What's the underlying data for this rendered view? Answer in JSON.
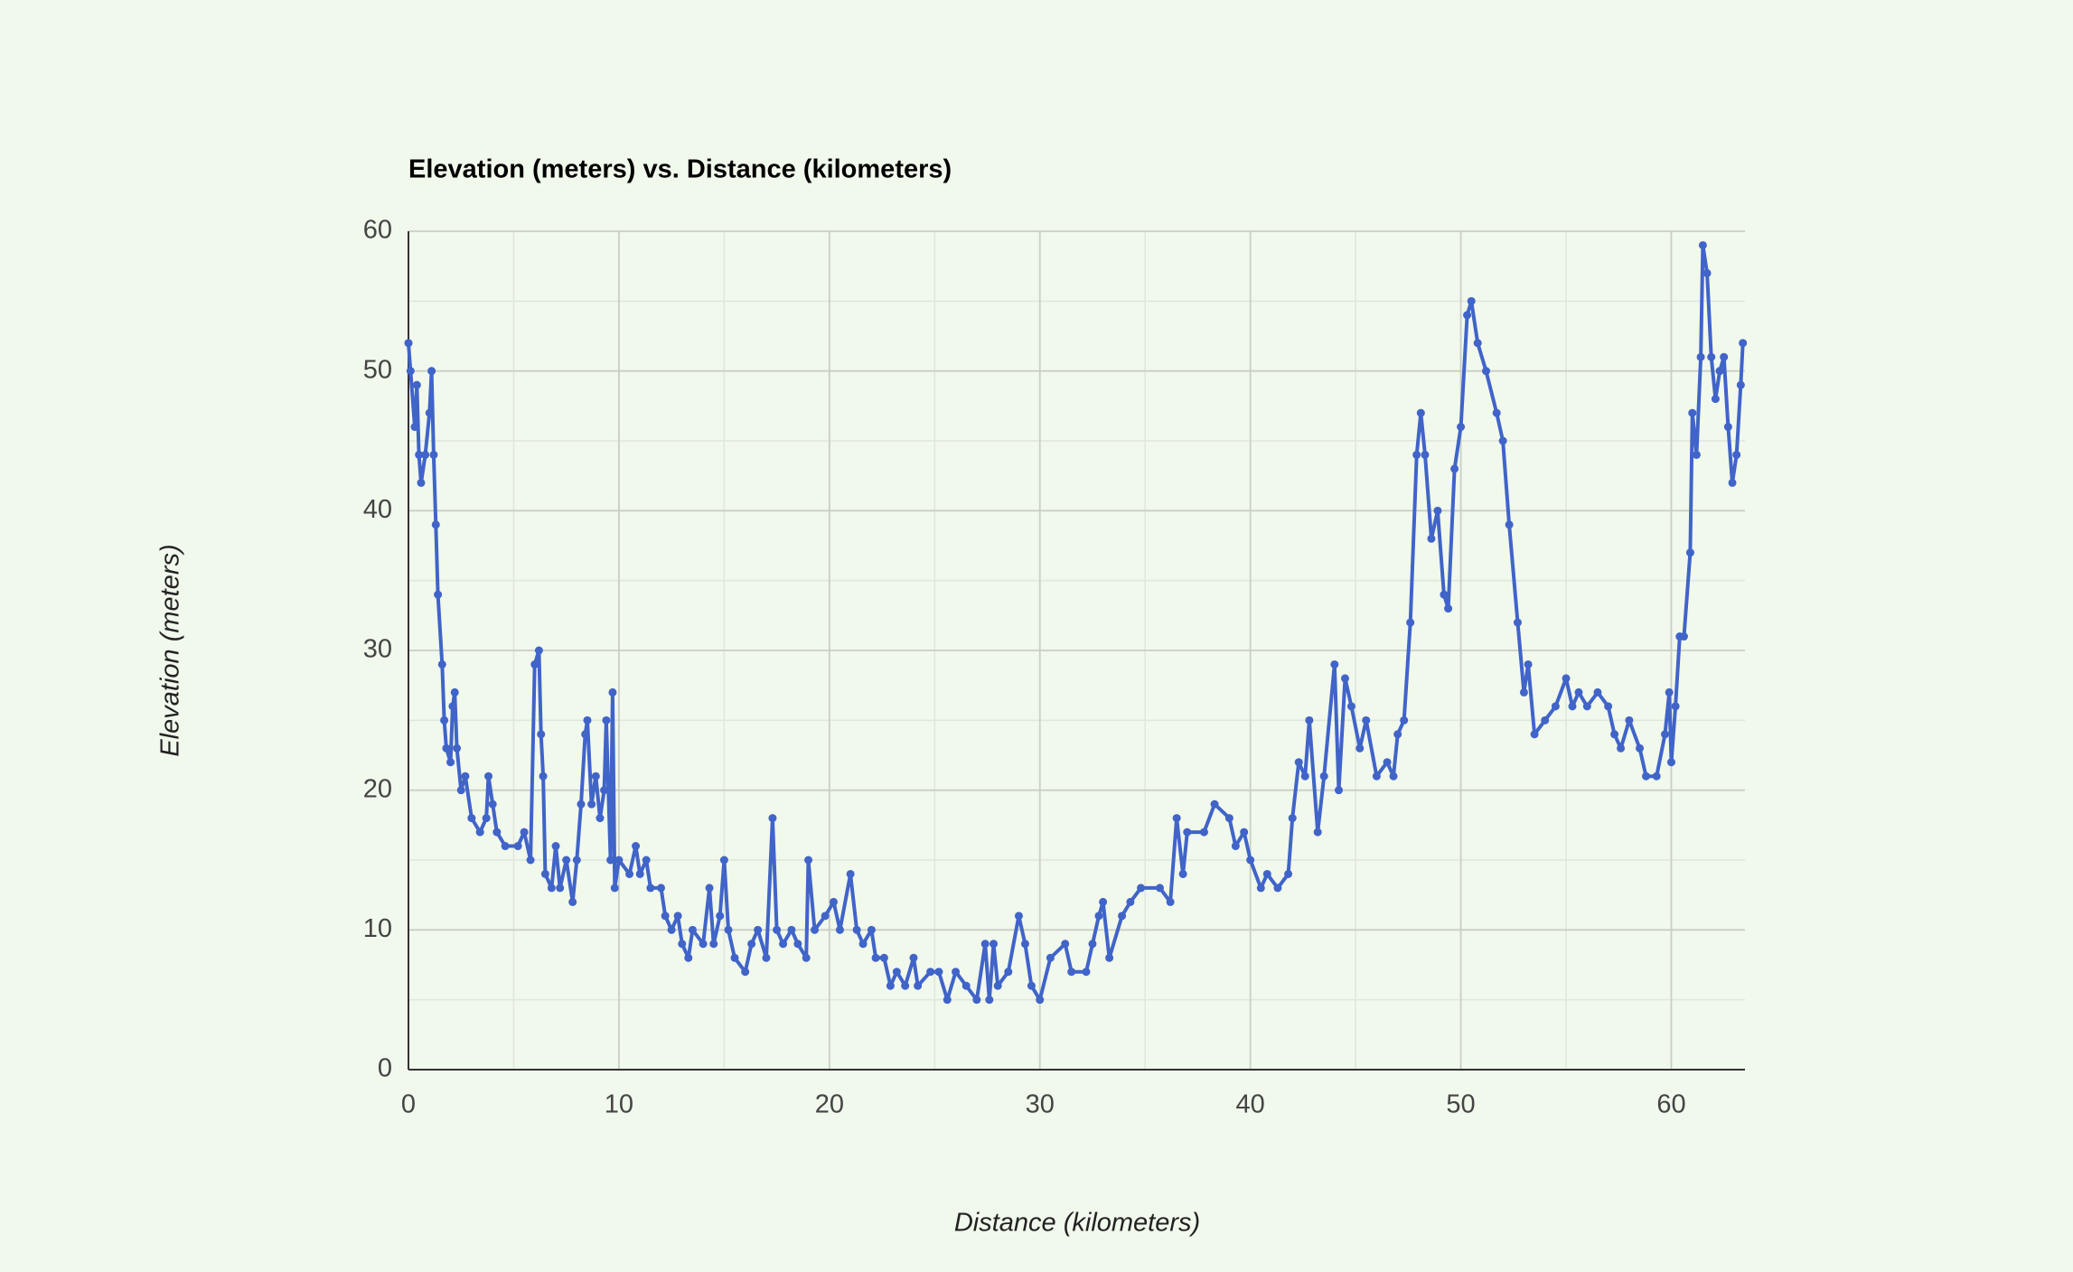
{
  "chart_data": {
    "type": "line",
    "title": "Elevation (meters) vs. Distance (kilometers)",
    "x_label": "Distance (kilometers)",
    "y_label": "Elevation (meters)",
    "color": "#4064c8",
    "grid": true,
    "xlim": [
      0,
      63.5
    ],
    "ylim": [
      0,
      60
    ],
    "xticks": [
      0,
      10,
      20,
      30,
      40,
      50,
      60
    ],
    "yticks": [
      0,
      10,
      20,
      30,
      40,
      50,
      60
    ],
    "x": [
      0,
      0.1,
      0.3,
      0.4,
      0.5,
      0.6,
      0.8,
      1.0,
      1.1,
      1.2,
      1.3,
      1.4,
      1.6,
      1.7,
      1.8,
      2.0,
      2.1,
      2.2,
      2.3,
      2.5,
      2.7,
      3.0,
      3.4,
      3.7,
      3.8,
      4.0,
      4.2,
      4.6,
      5.2,
      5.5,
      5.8,
      6.0,
      6.2,
      6.3,
      6.4,
      6.5,
      6.8,
      7.0,
      7.2,
      7.5,
      7.8,
      8.0,
      8.2,
      8.4,
      8.5,
      8.7,
      8.9,
      9.1,
      9.3,
      9.4,
      9.6,
      9.7,
      9.8,
      10.0,
      10.5,
      10.8,
      11.0,
      11.3,
      11.5,
      12.0,
      12.2,
      12.5,
      12.8,
      13.0,
      13.3,
      13.5,
      14.0,
      14.3,
      14.5,
      14.8,
      15.0,
      15.2,
      15.5,
      16.0,
      16.3,
      16.6,
      17.0,
      17.3,
      17.5,
      17.8,
      18.2,
      18.5,
      18.9,
      19.0,
      19.3,
      19.8,
      20.2,
      20.5,
      21.0,
      21.3,
      21.6,
      22.0,
      22.2,
      22.6,
      22.9,
      23.2,
      23.6,
      24.0,
      24.2,
      24.8,
      25.2,
      25.6,
      26.0,
      26.5,
      27.0,
      27.4,
      27.6,
      27.8,
      28.0,
      28.5,
      29.0,
      29.3,
      29.6,
      30.0,
      30.5,
      31.2,
      31.5,
      32.2,
      32.5,
      32.8,
      33.0,
      33.3,
      33.9,
      34.3,
      34.8,
      35.7,
      36.2,
      36.5,
      36.8,
      37.0,
      37.8,
      38.3,
      39.0,
      39.3,
      39.7,
      40.0,
      40.5,
      40.8,
      41.3,
      41.8,
      42.0,
      42.3,
      42.6,
      42.8,
      43.2,
      43.5,
      44.0,
      44.2,
      44.5,
      44.8,
      45.2,
      45.5,
      46.0,
      46.5,
      46.8,
      47.0,
      47.3,
      47.6,
      47.9,
      48.1,
      48.3,
      48.6,
      48.9,
      49.2,
      49.4,
      49.7,
      50.0,
      50.3,
      50.5,
      50.8,
      51.2,
      51.7,
      52.0,
      52.3,
      52.7,
      53.0,
      53.2,
      53.5,
      54.0,
      54.5,
      55.0,
      55.3,
      55.6,
      56.0,
      56.5,
      57.0,
      57.3,
      57.6,
      58.0,
      58.5,
      58.8,
      59.3,
      59.7,
      59.9,
      60.0,
      60.2,
      60.4,
      60.6,
      60.9,
      61.0,
      61.2,
      61.4,
      61.5,
      61.7,
      61.9,
      62.1,
      62.3,
      62.5,
      62.7,
      62.9,
      63.1,
      63.3,
      63.4
    ],
    "values": [
      52,
      50,
      46,
      49,
      44,
      42,
      44,
      47,
      50,
      44,
      39,
      34,
      29,
      25,
      23,
      22,
      26,
      27,
      23,
      20,
      21,
      18,
      17,
      18,
      21,
      19,
      17,
      16,
      16,
      17,
      15,
      29,
      30,
      24,
      21,
      14,
      13,
      16,
      13,
      15,
      12,
      15,
      19,
      24,
      25,
      19,
      21,
      18,
      20,
      25,
      15,
      27,
      13,
      15,
      14,
      16,
      14,
      15,
      13,
      13,
      11,
      10,
      11,
      9,
      8,
      10,
      9,
      13,
      9,
      11,
      15,
      10,
      8,
      7,
      9,
      10,
      8,
      18,
      10,
      9,
      10,
      9,
      8,
      15,
      10,
      11,
      12,
      10,
      14,
      10,
      9,
      10,
      8,
      8,
      6,
      7,
      6,
      8,
      6,
      7,
      7,
      5,
      7,
      6,
      5,
      9,
      5,
      9,
      6,
      7,
      11,
      9,
      6,
      5,
      8,
      9,
      7,
      7,
      9,
      11,
      12,
      8,
      11,
      12,
      13,
      13,
      12,
      18,
      14,
      17,
      17,
      19,
      18,
      16,
      17,
      15,
      13,
      14,
      13,
      14,
      18,
      22,
      21,
      25,
      17,
      21,
      29,
      20,
      28,
      26,
      23,
      25,
      21,
      22,
      21,
      24,
      25,
      32,
      44,
      47,
      44,
      38,
      40,
      34,
      33,
      43,
      46,
      54,
      55,
      52,
      50,
      47,
      45,
      39,
      32,
      27,
      29,
      24,
      25,
      26,
      28,
      26,
      27,
      26,
      27,
      26,
      24,
      23,
      25,
      23,
      21,
      21,
      24,
      27,
      22,
      26,
      31,
      31,
      37,
      47,
      44,
      51,
      59,
      57,
      51,
      48,
      50,
      51,
      46,
      42,
      44,
      49,
      52
    ]
  }
}
